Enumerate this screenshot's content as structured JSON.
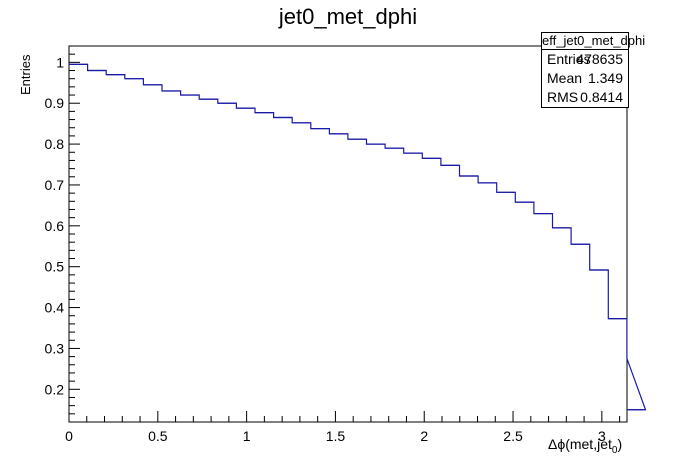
{
  "page": {
    "title": "jet0_met_dphi"
  },
  "stats": {
    "name": "eff_jet0_met_dphi",
    "rows": [
      {
        "key": "Entries",
        "value": "478635"
      },
      {
        "key": "Mean",
        "value": "1.349"
      },
      {
        "key": "RMS",
        "value": "0.8414"
      }
    ]
  },
  "axes": {
    "ylabel": "Entries",
    "xlabel_main": "Δϕ(met,jet",
    "xlabel_sub": "0",
    "xlabel_close": ")"
  },
  "colors": {
    "line": "#1a1aa8",
    "axis": "#000000"
  },
  "chart_data": {
    "type": "line",
    "title": "jet0_met_dphi",
    "xlabel": "Δϕ(met,jet0)",
    "ylabel": "Entries",
    "xlim": [
      0,
      3.1416
    ],
    "ylim": [
      0.12,
      1.04
    ],
    "xticks": [
      0,
      0.5,
      1,
      1.5,
      2,
      2.5,
      3
    ],
    "xtick_labels": [
      "0",
      "0.5",
      "1",
      "1.5",
      "2",
      "2.5",
      "3"
    ],
    "yticks": [
      0.2,
      0.3,
      0.4,
      0.5,
      0.6,
      0.7,
      0.8,
      0.9,
      1
    ],
    "ytick_labels": [
      "0.2",
      "0.3",
      "0.4",
      "0.5",
      "0.6",
      "0.7",
      "0.8",
      "0.9",
      "1"
    ],
    "bin_width": 0.1047,
    "series": [
      {
        "values": [
          0.995,
          0.98,
          0.97,
          0.96,
          0.945,
          0.93,
          0.92,
          0.91,
          0.9,
          0.888,
          0.877,
          0.865,
          0.852,
          0.838,
          0.825,
          0.812,
          0.8,
          0.79,
          0.778,
          0.765,
          0.748,
          0.722,
          0.705,
          0.682,
          0.658,
          0.63,
          0.595,
          0.555,
          0.492,
          0.373,
          0.275,
          0.15
        ]
      }
    ]
  }
}
